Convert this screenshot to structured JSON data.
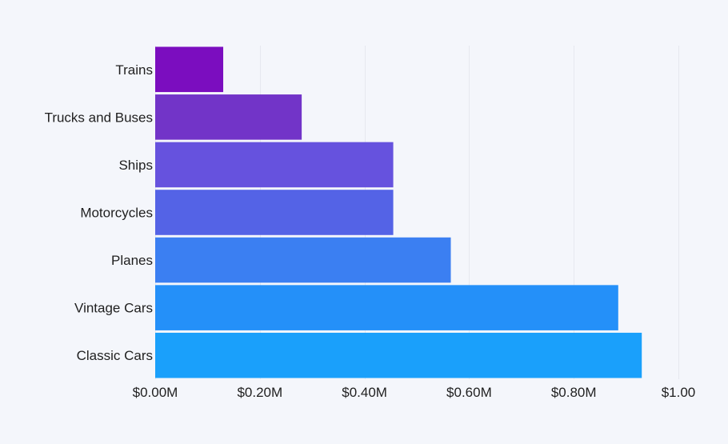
{
  "chart_data": {
    "type": "bar",
    "orientation": "horizontal",
    "title": "",
    "xlabel": "",
    "ylabel": "",
    "categories": [
      "Trains",
      "Trucks and Buses",
      "Ships",
      "Motorcycles",
      "Planes",
      "Vintage Cars",
      "Classic Cars"
    ],
    "values": [
      0.13,
      0.28,
      0.455,
      0.455,
      0.565,
      0.885,
      0.93
    ],
    "xlim": [
      0,
      1.0
    ],
    "x_ticks": [
      0,
      0.2,
      0.4,
      0.6,
      0.8,
      1.0
    ],
    "x_tick_labels": [
      "$0.00M",
      "$0.20M",
      "$0.40M",
      "$0.60M",
      "$0.80M",
      "$1.00"
    ],
    "bar_colors": [
      "#7b0dbf",
      "#7234c8",
      "#6652de",
      "#5463e6",
      "#3b7ff2",
      "#2490f9",
      "#1aa0fb"
    ],
    "grid": true,
    "legend": "none"
  }
}
